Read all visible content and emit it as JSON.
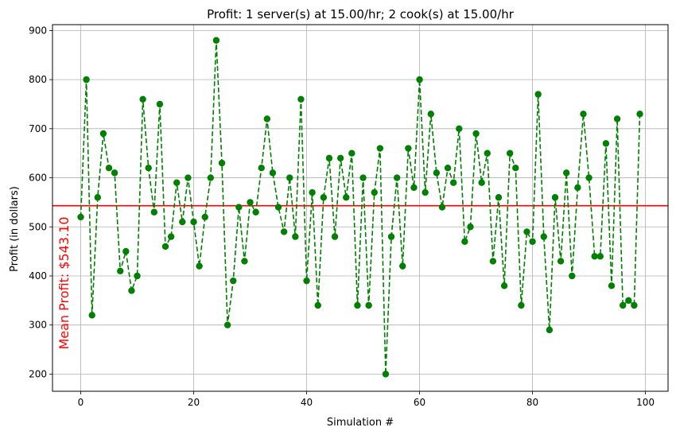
{
  "chart_data": {
    "type": "line",
    "title": "Profit: 1 server(s) at 15.00/hr; 2 cook(s) at 15.00/hr",
    "xlabel": "Simulation #",
    "ylabel": "Profit (in dollars)",
    "xlim": [
      -5,
      104
    ],
    "ylim": [
      165,
      912
    ],
    "xticks": [
      0,
      20,
      40,
      60,
      80,
      100
    ],
    "yticks": [
      200,
      300,
      400,
      500,
      600,
      700,
      800,
      900
    ],
    "xtick_labels": [
      "0",
      "20",
      "40",
      "60",
      "80",
      "100"
    ],
    "ytick_labels": [
      "200",
      "300",
      "400",
      "500",
      "600",
      "700",
      "800",
      "900"
    ],
    "grid": true,
    "series": [
      {
        "color": "#008000",
        "linestyle": "dashed",
        "marker": "circle",
        "x": [
          0,
          1,
          2,
          3,
          4,
          5,
          6,
          7,
          8,
          9,
          10,
          11,
          12,
          13,
          14,
          15,
          16,
          17,
          18,
          19,
          20,
          21,
          22,
          23,
          24,
          25,
          26,
          27,
          28,
          29,
          30,
          31,
          32,
          33,
          34,
          35,
          36,
          37,
          38,
          39,
          40,
          41,
          42,
          43,
          44,
          45,
          46,
          47,
          48,
          49,
          50,
          51,
          52,
          53,
          54,
          55,
          56,
          57,
          58,
          59,
          60,
          61,
          62,
          63,
          64,
          65,
          66,
          67,
          68,
          69,
          70,
          71,
          72,
          73,
          74,
          75,
          76,
          77,
          78,
          79,
          80,
          81,
          82,
          83,
          84,
          85,
          86,
          87,
          88,
          89,
          90,
          91,
          92,
          93,
          94,
          95,
          96,
          97,
          98,
          99
        ],
        "values": [
          520,
          800,
          320,
          560,
          690,
          620,
          610,
          410,
          450,
          370,
          400,
          760,
          620,
          530,
          750,
          460,
          480,
          590,
          510,
          600,
          510,
          420,
          520,
          600,
          880,
          630,
          300,
          390,
          540,
          430,
          550,
          530,
          620,
          720,
          610,
          540,
          490,
          600,
          480,
          760,
          390,
          570,
          340,
          560,
          640,
          480,
          640,
          560,
          650,
          340,
          600,
          340,
          570,
          660,
          200,
          480,
          600,
          420,
          660,
          580,
          800,
          570,
          730,
          610,
          540,
          620,
          590,
          700,
          470,
          500,
          690,
          590,
          650,
          430,
          560,
          380,
          650,
          620,
          340,
          490,
          470,
          770,
          480,
          290,
          560,
          430,
          610,
          400,
          580,
          730,
          600,
          440,
          440,
          670,
          380,
          720,
          340,
          350,
          340,
          730
        ]
      }
    ],
    "mean_line": {
      "value": 543.1,
      "color": "#ff0000",
      "label": "Mean Profit: $543.10"
    }
  }
}
